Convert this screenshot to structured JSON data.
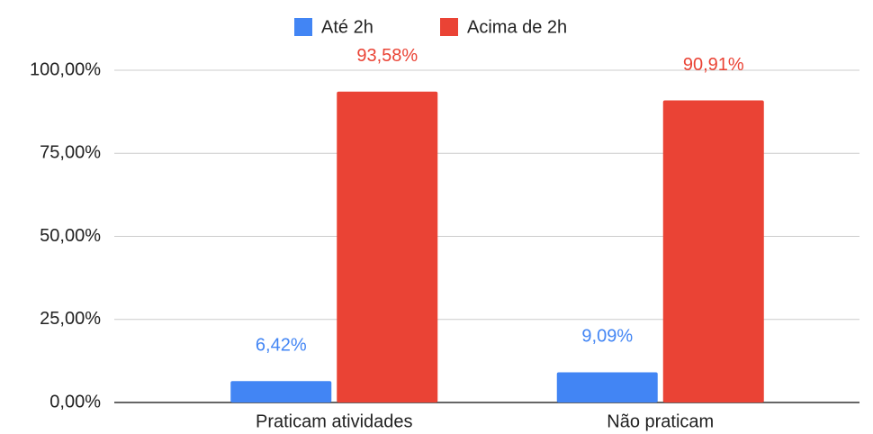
{
  "chart_data": {
    "type": "bar",
    "categories": [
      "Praticam atividades",
      "Não praticam"
    ],
    "series": [
      {
        "name": "Até 2h",
        "color": "#4285f4",
        "values": [
          6.42,
          9.09
        ],
        "value_labels": [
          "6,42%",
          "9,09%"
        ]
      },
      {
        "name": "Acima de 2h",
        "color": "#ea4335",
        "values": [
          93.58,
          90.91
        ],
        "value_labels": [
          "93,58%",
          "90,91%"
        ]
      }
    ],
    "ylim": [
      0,
      100
    ],
    "yticks": [
      {
        "value": 0,
        "label": "0,00%"
      },
      {
        "value": 25,
        "label": "25,00%"
      },
      {
        "value": 50,
        "label": "50,00%"
      },
      {
        "value": 75,
        "label": "75,00%"
      },
      {
        "value": 100,
        "label": "100,00%"
      }
    ],
    "grid": true,
    "legend": "top"
  }
}
